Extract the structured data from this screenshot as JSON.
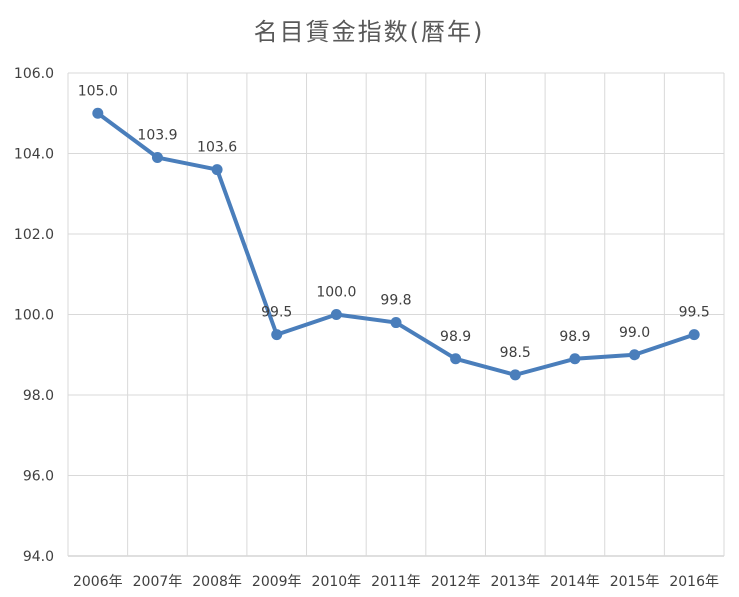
{
  "chart_data": {
    "type": "line",
    "title": "名目賃金指数(暦年)",
    "categories": [
      "2006年",
      "2007年",
      "2008年",
      "2009年",
      "2010年",
      "2011年",
      "2012年",
      "2013年",
      "2014年",
      "2015年",
      "2016年"
    ],
    "series": [
      {
        "name": "名目賃金指数",
        "values": [
          105.0,
          103.9,
          103.6,
          99.5,
          100.0,
          99.8,
          98.9,
          98.5,
          98.9,
          99.0,
          99.5
        ],
        "labels": [
          "105.0",
          "103.9",
          "103.6",
          "99.5",
          "100.0",
          "99.8",
          "98.9",
          "98.5",
          "98.9",
          "99.0",
          "99.5"
        ]
      }
    ],
    "ylim": [
      94.0,
      106.0
    ],
    "ytick_labels": [
      "94.0",
      "96.0",
      "98.0",
      "100.0",
      "102.0",
      "104.0",
      "106.0"
    ],
    "xlabel": "",
    "ylabel": "",
    "grid": true,
    "color": "#4a7ebb"
  }
}
